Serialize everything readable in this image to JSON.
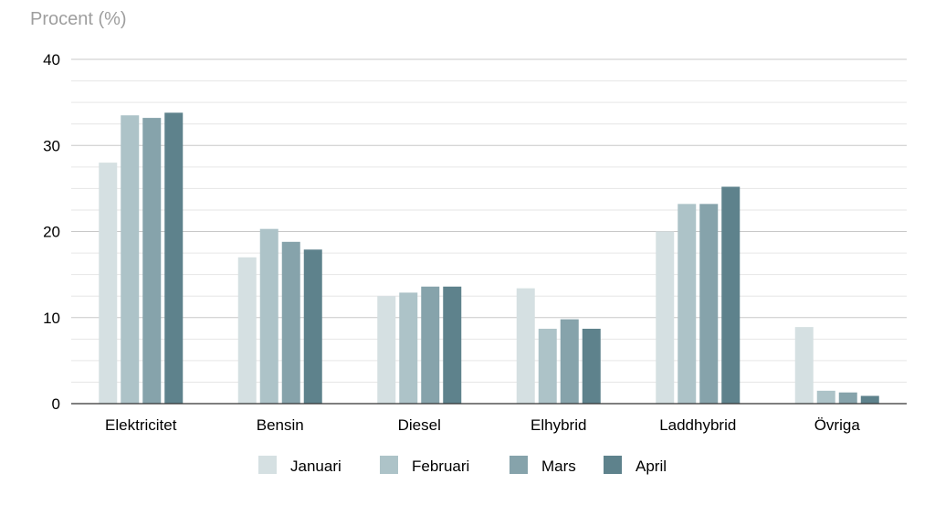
{
  "chart_data": {
    "type": "bar",
    "title": "",
    "xlabel": "",
    "ylabel": "Procent (%)",
    "ylim": [
      0,
      40
    ],
    "yticks": [
      0,
      10,
      20,
      30,
      40
    ],
    "minor_grid_step": 2.5,
    "grid": true,
    "legend_position": "bottom",
    "categories": [
      "Elektricitet",
      "Bensin",
      "Diesel",
      "Elhybrid",
      "Laddhybrid",
      "Övriga"
    ],
    "series": [
      {
        "name": "Januari",
        "color": "#d5e0e2",
        "values": [
          28.0,
          17.0,
          12.5,
          13.4,
          20.0,
          8.9
        ]
      },
      {
        "name": "Februari",
        "color": "#adc3c8",
        "values": [
          33.5,
          20.3,
          12.9,
          8.7,
          23.2,
          1.5
        ]
      },
      {
        "name": "Mars",
        "color": "#86a3ab",
        "values": [
          33.2,
          18.8,
          13.6,
          9.8,
          23.2,
          1.3
        ]
      },
      {
        "name": "April",
        "color": "#5e828c",
        "values": [
          33.8,
          17.9,
          13.6,
          8.7,
          25.2,
          0.9
        ]
      }
    ]
  }
}
